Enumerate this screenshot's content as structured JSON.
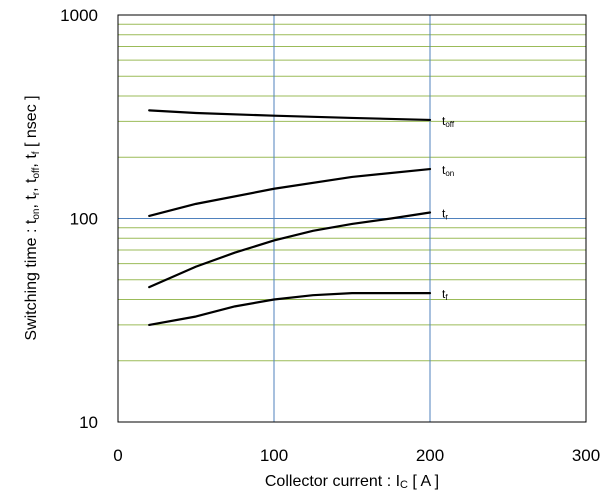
{
  "chart_data": {
    "type": "line",
    "xlabel_main": "Collector current : I",
    "xlabel_sub": "C",
    "xlabel_tail": " [ A ]",
    "ylabel_parts": [
      {
        "t": "Switching time : t",
        "sub": false
      },
      {
        "t": "on",
        "sub": true
      },
      {
        "t": ", t",
        "sub": false
      },
      {
        "t": "r",
        "sub": true
      },
      {
        "t": ", t",
        "sub": false
      },
      {
        "t": "off",
        "sub": true
      },
      {
        "t": ", t",
        "sub": false
      },
      {
        "t": "f",
        "sub": true
      },
      {
        "t": " [ nsec ]",
        "sub": false
      }
    ],
    "xlim": [
      0,
      300
    ],
    "ylim": [
      10,
      1000
    ],
    "yscale": "log",
    "x_ticks": [
      "0",
      "100",
      "200",
      "300"
    ],
    "y_ticks": [
      "10",
      "100",
      "1000"
    ],
    "grid": true,
    "colors": {
      "minor_grid": "#9bbb59",
      "major_grid": "#4f81bd",
      "line": "#000000"
    },
    "series": [
      {
        "name": "t",
        "sub": "off",
        "x": [
          20,
          50,
          100,
          150,
          200
        ],
        "y": [
          340,
          330,
          320,
          312,
          305
        ]
      },
      {
        "name": "t",
        "sub": "on",
        "x": [
          20,
          50,
          100,
          150,
          200
        ],
        "y": [
          103,
          118,
          140,
          160,
          175
        ]
      },
      {
        "name": "t",
        "sub": "r",
        "x": [
          20,
          50,
          75,
          100,
          125,
          150,
          175,
          200
        ],
        "y": [
          46,
          58,
          68,
          78,
          87,
          94,
          100,
          107
        ]
      },
      {
        "name": "t",
        "sub": "f",
        "x": [
          20,
          50,
          75,
          100,
          125,
          150,
          175,
          200
        ],
        "y": [
          30,
          33,
          37,
          40,
          42,
          43,
          43,
          43
        ]
      }
    ]
  }
}
